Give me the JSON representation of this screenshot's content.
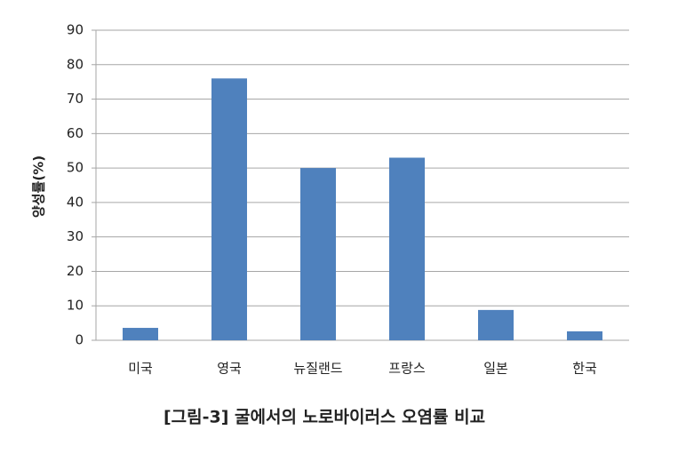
{
  "chart_data": {
    "type": "bar",
    "title": "[그림-3] 굴에서의 노로바이러스 오염률 비교",
    "y_label": "양성률(%)",
    "categories": [
      "미국",
      "영국",
      "뉴질랜드",
      "프랑스",
      "일본",
      "한국"
    ],
    "values": [
      3.6,
      76,
      50,
      53,
      8.8,
      2.6
    ],
    "color": "#4f81bd",
    "ylim": [
      0,
      90
    ],
    "yticks": [
      0,
      10,
      20,
      30,
      40,
      50,
      60,
      70,
      80,
      90
    ],
    "grid": true
  }
}
